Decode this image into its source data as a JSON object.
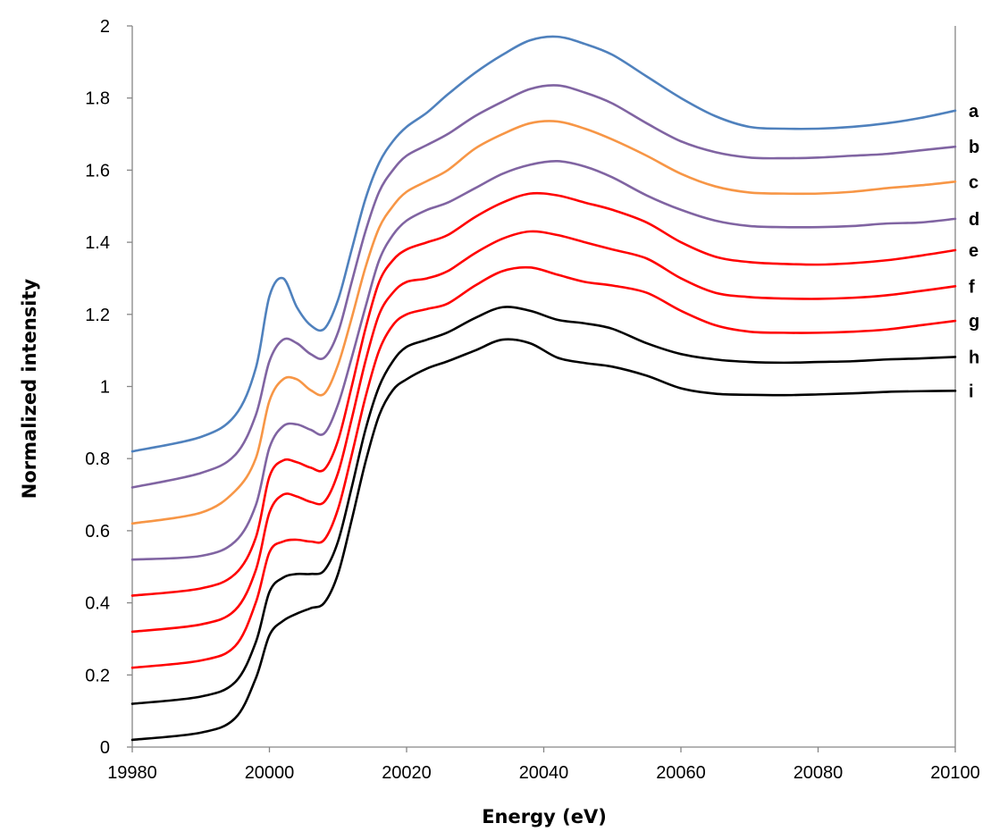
{
  "chart_data": {
    "type": "line",
    "title": "",
    "xlabel": "Energy (eV)",
    "ylabel": "Normalized intensity",
    "xlim": [
      19980,
      20100
    ],
    "ylim": [
      0,
      2
    ],
    "x_ticks": [
      "19980",
      "20000",
      "20020",
      "20040",
      "20060",
      "20080",
      "20100"
    ],
    "y_ticks": [
      "0",
      "0.2",
      "0.4",
      "0.6",
      "0.8",
      "1",
      "1.2",
      "1.4",
      "1.6",
      "1.8",
      "2"
    ],
    "grid": false,
    "legend": "none",
    "x": [
      19980,
      19990,
      19995,
      19998,
      20000,
      20002,
      20004,
      20006,
      20008,
      20010,
      20012,
      20014,
      20016,
      20018,
      20020,
      20023,
      20026,
      20030,
      20034,
      20038,
      20042,
      20046,
      20050,
      20055,
      20060,
      20065,
      20070,
      20075,
      20080,
      20085,
      20090,
      20095,
      20100
    ],
    "series": [
      {
        "name": "a",
        "color": "#4f81bd",
        "values": [
          0.82,
          0.86,
          0.92,
          1.05,
          1.25,
          1.3,
          1.22,
          1.17,
          1.16,
          1.24,
          1.38,
          1.52,
          1.62,
          1.68,
          1.72,
          1.76,
          1.81,
          1.87,
          1.92,
          1.96,
          1.97,
          1.95,
          1.92,
          1.86,
          1.8,
          1.75,
          1.72,
          1.715,
          1.715,
          1.72,
          1.73,
          1.745,
          1.765
        ]
      },
      {
        "name": "b",
        "color": "#8064a2",
        "values": [
          0.72,
          0.76,
          0.81,
          0.92,
          1.07,
          1.13,
          1.12,
          1.09,
          1.08,
          1.15,
          1.29,
          1.43,
          1.54,
          1.6,
          1.64,
          1.67,
          1.7,
          1.75,
          1.79,
          1.825,
          1.835,
          1.815,
          1.785,
          1.73,
          1.68,
          1.65,
          1.635,
          1.633,
          1.635,
          1.64,
          1.645,
          1.655,
          1.665
        ]
      },
      {
        "name": "c",
        "color": "#f79646",
        "values": [
          0.62,
          0.65,
          0.71,
          0.8,
          0.96,
          1.02,
          1.02,
          0.99,
          0.98,
          1.06,
          1.19,
          1.33,
          1.44,
          1.5,
          1.54,
          1.57,
          1.6,
          1.66,
          1.7,
          1.73,
          1.735,
          1.715,
          1.685,
          1.64,
          1.59,
          1.555,
          1.538,
          1.535,
          1.535,
          1.54,
          1.55,
          1.558,
          1.568
        ]
      },
      {
        "name": "d",
        "color": "#8064a2",
        "values": [
          0.52,
          0.53,
          0.57,
          0.67,
          0.83,
          0.89,
          0.895,
          0.88,
          0.87,
          0.95,
          1.08,
          1.22,
          1.35,
          1.42,
          1.46,
          1.49,
          1.51,
          1.55,
          1.59,
          1.615,
          1.625,
          1.61,
          1.58,
          1.53,
          1.49,
          1.46,
          1.445,
          1.442,
          1.442,
          1.445,
          1.452,
          1.455,
          1.465
        ]
      },
      {
        "name": "e",
        "color": "#ff0000",
        "values": [
          0.42,
          0.44,
          0.48,
          0.58,
          0.75,
          0.795,
          0.79,
          0.775,
          0.77,
          0.85,
          1.0,
          1.16,
          1.29,
          1.35,
          1.38,
          1.4,
          1.42,
          1.47,
          1.51,
          1.535,
          1.53,
          1.51,
          1.49,
          1.455,
          1.4,
          1.36,
          1.345,
          1.34,
          1.338,
          1.342,
          1.35,
          1.363,
          1.378
        ]
      },
      {
        "name": "f",
        "color": "#ff0000",
        "values": [
          0.32,
          0.34,
          0.38,
          0.49,
          0.65,
          0.7,
          0.695,
          0.68,
          0.68,
          0.76,
          0.91,
          1.07,
          1.2,
          1.26,
          1.29,
          1.3,
          1.32,
          1.37,
          1.41,
          1.43,
          1.42,
          1.4,
          1.38,
          1.355,
          1.3,
          1.26,
          1.248,
          1.244,
          1.243,
          1.246,
          1.253,
          1.265,
          1.278
        ]
      },
      {
        "name": "g",
        "color": "#ff0000",
        "values": [
          0.22,
          0.24,
          0.28,
          0.4,
          0.54,
          0.57,
          0.575,
          0.57,
          0.575,
          0.66,
          0.81,
          0.97,
          1.1,
          1.17,
          1.2,
          1.215,
          1.23,
          1.28,
          1.32,
          1.33,
          1.31,
          1.29,
          1.28,
          1.26,
          1.21,
          1.17,
          1.152,
          1.149,
          1.149,
          1.152,
          1.158,
          1.17,
          1.182
        ]
      },
      {
        "name": "h",
        "color": "#000000",
        "values": [
          0.12,
          0.14,
          0.18,
          0.29,
          0.43,
          0.47,
          0.48,
          0.48,
          0.49,
          0.57,
          0.72,
          0.88,
          1.0,
          1.07,
          1.11,
          1.13,
          1.15,
          1.19,
          1.22,
          1.21,
          1.185,
          1.175,
          1.16,
          1.12,
          1.09,
          1.075,
          1.068,
          1.066,
          1.068,
          1.07,
          1.075,
          1.078,
          1.082
        ]
      },
      {
        "name": "i",
        "color": "#000000",
        "values": [
          0.02,
          0.04,
          0.08,
          0.19,
          0.31,
          0.35,
          0.37,
          0.385,
          0.4,
          0.48,
          0.63,
          0.79,
          0.92,
          0.99,
          1.02,
          1.05,
          1.07,
          1.1,
          1.13,
          1.12,
          1.08,
          1.065,
          1.055,
          1.03,
          0.995,
          0.98,
          0.977,
          0.976,
          0.978,
          0.981,
          0.985,
          0.987,
          0.988
        ]
      }
    ]
  }
}
